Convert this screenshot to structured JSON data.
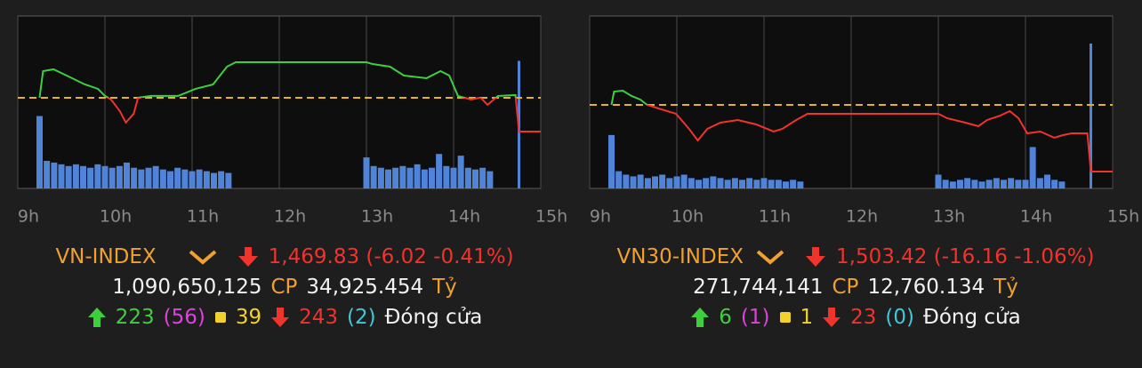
{
  "chart_data": [
    {
      "type": "line",
      "x": [
        9.25,
        9.29,
        9.41,
        9.56,
        9.77,
        9.92,
        10,
        10.07,
        10.17,
        10.24,
        10.33,
        10.38,
        10.53,
        10.84,
        11.04,
        11.24,
        11.4,
        11.5,
        13,
        13.07,
        13.27,
        13.43,
        13.69,
        13.85,
        13.95,
        14.05,
        14.2,
        14.31,
        14.39,
        14.51,
        14.71,
        14.75,
        15
      ],
      "series": [
        {
          "values": [
            1475.85,
            1480.59,
            1480.91,
            1479.8,
            1478.22,
            1477.43,
            1476.17,
            1475.53,
            1473.48,
            1471.43,
            1473.0,
            1475.85,
            1476.17,
            1476.17,
            1477.43,
            1478.22,
            1481.38,
            1482.17,
            1482.17,
            1481.85,
            1481.38,
            1479.8,
            1479.33,
            1480.59,
            1479.8,
            1476.17,
            1475.53,
            1475.85,
            1474.59,
            1476.17,
            1476.32,
            1469.83,
            1469.83
          ],
          "up_color": "#3ecf3e",
          "down_color": "#f0332b"
        }
      ],
      "reference_line": {
        "value": 1475.85,
        "color": "#e6b422"
      },
      "volume": {
        "x": [
          9.25,
          9.333,
          9.417,
          9.5,
          9.583,
          9.667,
          9.75,
          9.833,
          9.917,
          10,
          10.083,
          10.167,
          10.25,
          10.333,
          10.417,
          10.5,
          10.583,
          10.667,
          10.75,
          10.833,
          10.917,
          11,
          11.083,
          11.167,
          11.25,
          11.333,
          11.417,
          13,
          13.083,
          13.167,
          13.25,
          13.333,
          13.417,
          13.5,
          13.583,
          13.667,
          13.75,
          13.833,
          13.917,
          14,
          14.083,
          14.167,
          14.25,
          14.333,
          14.417,
          14.75
        ],
        "values": [
          42,
          16,
          15,
          14,
          13,
          14,
          13,
          12,
          14,
          13,
          12,
          13,
          15,
          12,
          11,
          12,
          13,
          11,
          10,
          12,
          11,
          10,
          11,
          10,
          9,
          10,
          9,
          18,
          13,
          12,
          11,
          12,
          13,
          12,
          14,
          11,
          12,
          20,
          13,
          12,
          19,
          12,
          11,
          12,
          10,
          74
        ],
        "color": "#4f84d9"
      },
      "xlim": [
        9,
        15
      ],
      "xticks": [
        {
          "value": 9,
          "label": "9h"
        },
        {
          "value": 10,
          "label": "10h"
        },
        {
          "value": 11,
          "label": "11h"
        },
        {
          "value": 12,
          "label": "12h"
        },
        {
          "value": 13,
          "label": "13h"
        },
        {
          "value": 14,
          "label": "14h"
        },
        {
          "value": 15,
          "label": "15h"
        }
      ],
      "ylim": [
        1459.7,
        1490.4
      ],
      "y2lim": [
        0,
        100
      ],
      "grid": true
    },
    {
      "type": "line",
      "x": [
        9.25,
        9.28,
        9.38,
        9.48,
        9.58,
        9.66,
        9.79,
        9.99,
        10.14,
        10.24,
        10.35,
        10.5,
        10.7,
        10.91,
        11.11,
        11.21,
        11.37,
        11.5,
        13,
        13.1,
        13.31,
        13.46,
        13.56,
        13.71,
        13.82,
        13.92,
        14.02,
        14.17,
        14.33,
        14.43,
        14.53,
        14.71,
        14.75,
        15
      ],
      "series": [
        {
          "values": [
            1519.58,
            1522.81,
            1523.03,
            1521.74,
            1520.87,
            1519.58,
            1518.72,
            1517.43,
            1513.77,
            1510.96,
            1513.77,
            1515.27,
            1515.92,
            1514.84,
            1513.12,
            1513.77,
            1515.92,
            1517.43,
            1517.43,
            1516.35,
            1515.27,
            1514.41,
            1515.92,
            1516.99,
            1518.07,
            1516.35,
            1512.68,
            1513.12,
            1511.61,
            1512.25,
            1512.68,
            1512.68,
            1503.42,
            1503.42
          ],
          "up_color": "#3ecf3e",
          "down_color": "#f0332b"
        }
      ],
      "reference_line": {
        "value": 1519.58,
        "color": "#e6b422"
      },
      "volume": {
        "x": [
          9.25,
          9.333,
          9.417,
          9.5,
          9.583,
          9.667,
          9.75,
          9.833,
          9.917,
          10,
          10.083,
          10.167,
          10.25,
          10.333,
          10.417,
          10.5,
          10.583,
          10.667,
          10.75,
          10.833,
          10.917,
          11,
          11.083,
          11.167,
          11.25,
          11.333,
          11.417,
          13,
          13.083,
          13.167,
          13.25,
          13.333,
          13.417,
          13.5,
          13.583,
          13.667,
          13.75,
          13.833,
          13.917,
          14,
          14.083,
          14.167,
          14.25,
          14.333,
          14.417,
          14.75
        ],
        "values": [
          31,
          10,
          8,
          7,
          8,
          6,
          7,
          8,
          6,
          7,
          8,
          6,
          5,
          6,
          7,
          6,
          5,
          6,
          5,
          6,
          5,
          6,
          5,
          5,
          4,
          5,
          4,
          8,
          5,
          4,
          5,
          6,
          5,
          4,
          5,
          6,
          5,
          6,
          5,
          5,
          24,
          6,
          8,
          5,
          4,
          84
        ],
        "color": "#4f84d9"
      },
      "xlim": [
        9,
        15
      ],
      "xticks": [
        {
          "value": 9,
          "label": "9h"
        },
        {
          "value": 10,
          "label": "10h"
        },
        {
          "value": 11,
          "label": "11h"
        },
        {
          "value": 12,
          "label": "12h"
        },
        {
          "value": 13,
          "label": "13h"
        },
        {
          "value": 14,
          "label": "14h"
        },
        {
          "value": 15,
          "label": "15h"
        }
      ],
      "ylim": [
        1499.32,
        1541.13
      ],
      "y2lim": [
        0,
        100
      ],
      "grid": true
    }
  ],
  "summaries": [
    {
      "name": "VN-INDEX",
      "price_change": "1,469.83 (-6.02 -0.41%)",
      "volume": "1,090,650,125",
      "volume_unit": "CP",
      "value": "34,925.454",
      "value_unit": "Tỷ",
      "advances": "223",
      "ceiling": "(56)",
      "unchanged": "39",
      "declines": "243",
      "floor": "(2)",
      "status": "Đóng cửa"
    },
    {
      "name": "VN30-INDEX",
      "price_change": "1,503.42 (-16.16 -1.06%)",
      "volume": "271,744,141",
      "volume_unit": "CP",
      "value": "12,760.134",
      "value_unit": "Tỷ",
      "advances": "6",
      "ceiling": "(1)",
      "unchanged": "1",
      "declines": "23",
      "floor": "(0)",
      "status": "Đóng cửa"
    }
  ]
}
